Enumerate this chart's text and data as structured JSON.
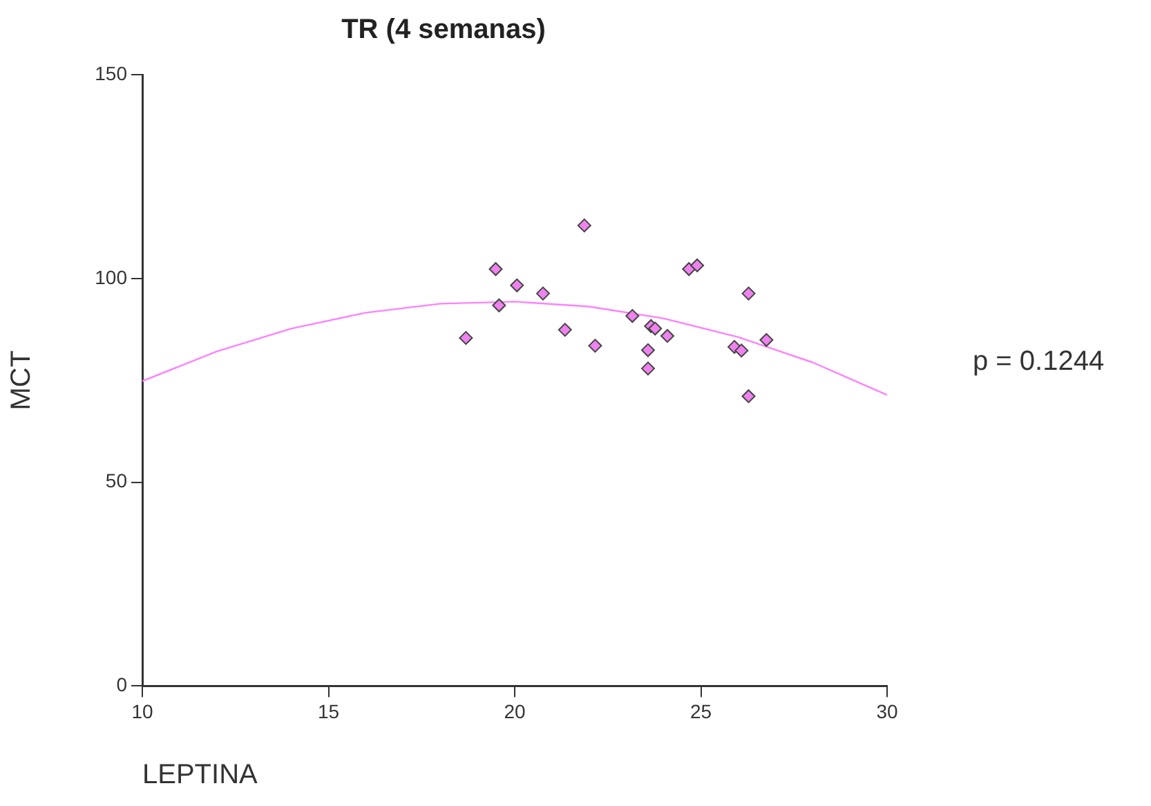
{
  "chart_data": {
    "type": "scatter",
    "title": "TR (4 semanas)",
    "xlabel": "LEPTINA",
    "ylabel": "MCT",
    "xlim": [
      10,
      30
    ],
    "xticks": [
      10,
      15,
      20,
      25,
      30
    ],
    "ylim": [
      0,
      150
    ],
    "yticks": [
      0,
      50,
      100,
      150
    ],
    "grid": false,
    "legend": false,
    "marker": "diamond",
    "annotations": [
      "p = 0.1244"
    ],
    "series": [
      {
        "color": "#ee82ee",
        "x": [
          18.69,
          19.49,
          19.58,
          20.06,
          20.76,
          21.35,
          22.16,
          21.87,
          23.16,
          23.66,
          23.77,
          24.1,
          23.58,
          23.58,
          24.68,
          24.9,
          26.28,
          25.9,
          26.09,
          26.76,
          26.28
        ],
        "values": [
          85.4,
          102.3,
          93.4,
          98.3,
          96.3,
          87.4,
          83.5,
          113.0,
          90.8,
          88.3,
          87.7,
          85.9,
          82.4,
          77.9,
          102.3,
          103.2,
          96.3,
          83.2,
          82.3,
          84.9,
          71.1
        ]
      },
      {
        "type": "line",
        "color": "#ff80ff",
        "marker": "none",
        "x": [
          10,
          12,
          14,
          16,
          18,
          20,
          22,
          24,
          26,
          28,
          30
        ],
        "values": [
          74.8,
          82.1,
          87.7,
          91.6,
          93.8,
          94.3,
          93.1,
          90.2,
          85.6,
          79.4,
          71.4
        ]
      }
    ]
  }
}
